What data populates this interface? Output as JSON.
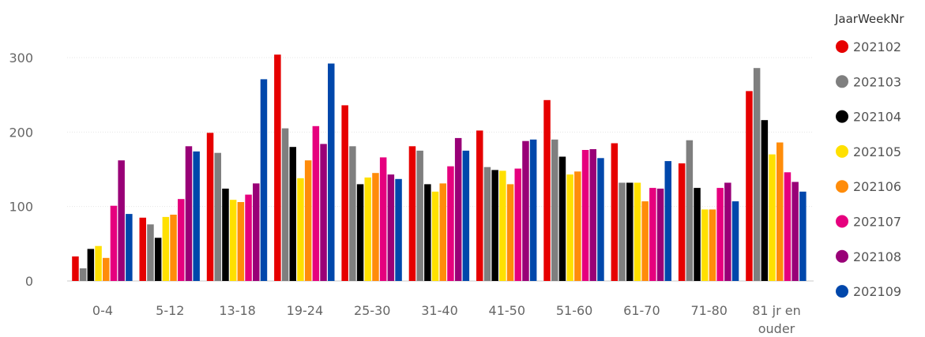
{
  "chart_data": {
    "type": "bar",
    "title": "",
    "xlabel": "",
    "ylabel": "",
    "ylim": [
      0,
      330
    ],
    "yticks": [
      0,
      100,
      200,
      300
    ],
    "grid": true,
    "legend_title": "JaarWeekNr",
    "legend_position": "right",
    "categories": [
      "0-4",
      "5-12",
      "13-18",
      "19-24",
      "25-30",
      "31-40",
      "41-50",
      "51-60",
      "61-70",
      "71-80",
      "81 jr en ouder"
    ],
    "series": [
      {
        "name": "202102",
        "color": "#e60000",
        "values": [
          33,
          85,
          199,
          304,
          236,
          181,
          202,
          243,
          185,
          158,
          255
        ]
      },
      {
        "name": "202103",
        "color": "#7f7f7f",
        "values": [
          17,
          76,
          172,
          205,
          181,
          175,
          153,
          190,
          132,
          189,
          286
        ]
      },
      {
        "name": "202104",
        "color": "#000000",
        "values": [
          43,
          58,
          124,
          180,
          130,
          130,
          149,
          167,
          132,
          125,
          216
        ]
      },
      {
        "name": "202105",
        "color": "#ffe000",
        "values": [
          47,
          86,
          109,
          138,
          139,
          120,
          148,
          143,
          132,
          96,
          170
        ]
      },
      {
        "name": "202106",
        "color": "#ff8c0a",
        "values": [
          31,
          89,
          106,
          162,
          145,
          131,
          130,
          147,
          107,
          96,
          186
        ]
      },
      {
        "name": "202107",
        "color": "#e6007e",
        "values": [
          101,
          110,
          116,
          208,
          166,
          154,
          151,
          176,
          125,
          125,
          146
        ]
      },
      {
        "name": "202108",
        "color": "#990077",
        "values": [
          162,
          181,
          131,
          184,
          143,
          192,
          188,
          177,
          124,
          132,
          133
        ]
      },
      {
        "name": "202109",
        "color": "#0047ab",
        "values": [
          90,
          174,
          271,
          292,
          137,
          175,
          190,
          165,
          161,
          107,
          120
        ]
      }
    ]
  }
}
